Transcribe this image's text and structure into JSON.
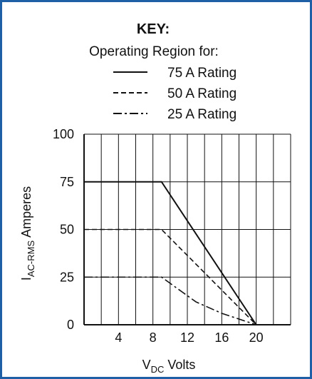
{
  "chart_data": {
    "type": "line",
    "key": {
      "title": "KEY:",
      "subtitle": "Operating Region for:"
    },
    "xlabel": {
      "main": "V",
      "sub": "DC",
      "rest": " Volts"
    },
    "ylabel": {
      "main": "I",
      "sub": "AC-RMS",
      "rest": " Amperes"
    },
    "xlim": [
      0,
      24
    ],
    "ylim": [
      0,
      100
    ],
    "x_ticks": [
      4,
      8,
      12,
      16,
      20
    ],
    "y_ticks": [
      0,
      25,
      50,
      75,
      100
    ],
    "x_grid_step": 2,
    "y_grid_step": 25,
    "grid": true,
    "series": [
      {
        "name": "75 A Rating",
        "style": "solid",
        "points": [
          [
            0,
            75
          ],
          [
            9,
            75
          ],
          [
            20,
            0
          ]
        ]
      },
      {
        "name": "50 A Rating",
        "style": "dashed",
        "points": [
          [
            0,
            50
          ],
          [
            9,
            50
          ],
          [
            20,
            0
          ]
        ]
      },
      {
        "name": "25 A Rating",
        "style": "dashdot",
        "points": [
          [
            0,
            25
          ],
          [
            9,
            25
          ],
          [
            13,
            12
          ],
          [
            16,
            6
          ],
          [
            20,
            0
          ]
        ]
      }
    ],
    "colors": {
      "frame": "#1f5fa6",
      "ink": "#111111"
    }
  }
}
